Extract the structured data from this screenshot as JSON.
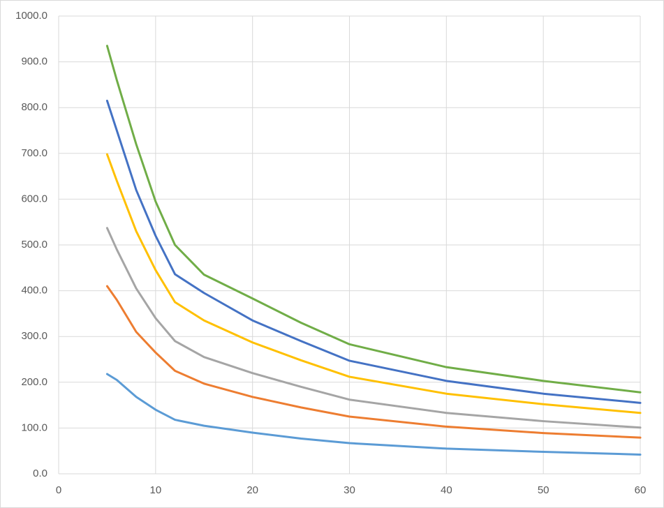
{
  "chart_data": {
    "type": "line",
    "x": [
      5,
      6,
      8,
      10,
      12,
      15,
      20,
      25,
      30,
      40,
      50,
      60
    ],
    "series": [
      {
        "color": "#5b9bd5",
        "values": [
          218,
          205,
          168,
          140,
          118,
          105,
          90,
          77,
          67,
          55,
          48,
          42
        ]
      },
      {
        "color": "#ed7d31",
        "values": [
          410,
          380,
          310,
          265,
          225,
          197,
          168,
          145,
          125,
          103,
          89,
          79
        ]
      },
      {
        "color": "#a5a5a5",
        "values": [
          537,
          490,
          405,
          340,
          290,
          255,
          220,
          190,
          162,
          133,
          115,
          101
        ]
      },
      {
        "color": "#ffc000",
        "values": [
          698,
          640,
          530,
          445,
          375,
          335,
          287,
          248,
          212,
          175,
          152,
          133
        ]
      },
      {
        "color": "#4472c4",
        "values": [
          815,
          750,
          620,
          520,
          436,
          395,
          335,
          290,
          247,
          203,
          175,
          155
        ]
      },
      {
        "color": "#70ad47",
        "values": [
          935,
          860,
          720,
          595,
          500,
          435,
          383,
          330,
          283,
          233,
          203,
          178
        ]
      }
    ],
    "xlim": [
      0,
      60
    ],
    "xticks": [
      0,
      10,
      20,
      30,
      40,
      50,
      60
    ],
    "ylim": [
      0,
      1000
    ],
    "yticks": [
      {
        "value": 0,
        "label": "0.0"
      },
      {
        "value": 100,
        "label": "100.0"
      },
      {
        "value": 200,
        "label": "200.0"
      },
      {
        "value": 300,
        "label": "300.0"
      },
      {
        "value": 400,
        "label": "400.0"
      },
      {
        "value": 500,
        "label": "500.0"
      },
      {
        "value": 600,
        "label": "600.0"
      },
      {
        "value": 700,
        "label": "700.0"
      },
      {
        "value": 800,
        "label": "800.0"
      },
      {
        "value": 900,
        "label": "900.0"
      },
      {
        "value": 1000,
        "label": "1000.0"
      }
    ],
    "grid": true
  }
}
